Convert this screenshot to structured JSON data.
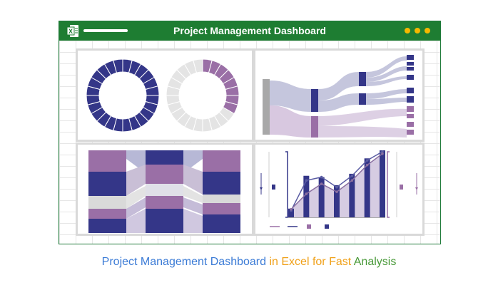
{
  "window": {
    "title": "Project Management Dashboard",
    "icon": "excel-icon",
    "colors": {
      "titlebar": "#1e7d32",
      "dots": "#f5b800",
      "navy": "#343688",
      "purple": "#9a6fa6",
      "lavender": "#c5bfd8",
      "gray": "#d9d9d9"
    }
  },
  "caption": {
    "part1": "Project Management Dashboard",
    "part2": " in Excel for Fast ",
    "part3": "Analysis"
  },
  "charts": {
    "donuts": {
      "type": "donut",
      "segments": 24,
      "donut1_filled": 24,
      "donut2_filled": 8
    },
    "combo": {
      "type": "bar-line-area",
      "bars": [
        0.13,
        0.62,
        0.6,
        0.48,
        0.65,
        0.88,
        1.0
      ],
      "line1": [
        0.1,
        0.55,
        0.6,
        0.45,
        0.62,
        0.85,
        0.98
      ],
      "line2": [
        0.12,
        0.35,
        0.5,
        0.38,
        0.55,
        0.78,
        0.95
      ]
    }
  }
}
